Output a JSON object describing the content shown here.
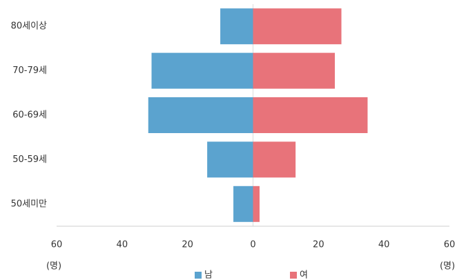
{
  "chart_data": {
    "type": "bar",
    "orientation": "horizontal",
    "categories": [
      "80세이상",
      "70-79세",
      "60-69세",
      "50-59세",
      "50세미만"
    ],
    "series": [
      {
        "name": "남",
        "color": "#5ba3cf",
        "values": [
          -10,
          -31,
          -32,
          -14,
          -6
        ]
      },
      {
        "name": "여",
        "color": "#e8737a",
        "values": [
          27,
          25,
          35,
          13,
          2
        ]
      }
    ],
    "xlim": [
      -60,
      60
    ],
    "xticks": [
      {
        "value": -60,
        "label": "60"
      },
      {
        "value": -40,
        "label": "40"
      },
      {
        "value": -20,
        "label": "20"
      },
      0,
      20,
      40,
      60
    ],
    "x_label_left": "(명)",
    "x_label_right": "(명)",
    "legend": "bottom"
  }
}
